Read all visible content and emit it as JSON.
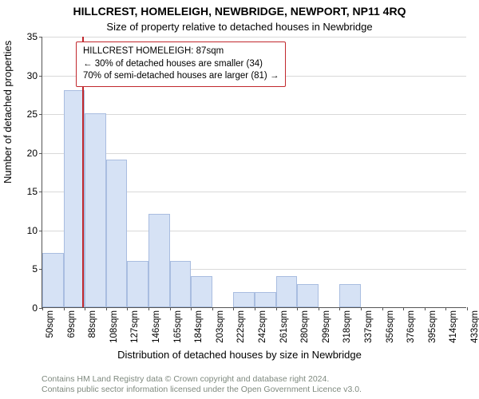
{
  "chart": {
    "type": "histogram",
    "title_main": "HILLCREST, HOMELEIGH, NEWBRIDGE, NEWPORT, NP11 4RQ",
    "title_sub": "Size of property relative to detached houses in Newbridge",
    "ylabel": "Number of detached properties",
    "xlabel": "Distribution of detached houses by size in Newbridge",
    "ylim": [
      0,
      35
    ],
    "ytick_step": 5,
    "yticks": [
      0,
      5,
      10,
      15,
      20,
      25,
      30,
      35
    ],
    "x_start": 50,
    "x_bin_width": 19.2,
    "x_tick_labels": [
      "50sqm",
      "69sqm",
      "88sqm",
      "108sqm",
      "127sqm",
      "146sqm",
      "165sqm",
      "184sqm",
      "203sqm",
      "222sqm",
      "242sqm",
      "261sqm",
      "280sqm",
      "299sqm",
      "318sqm",
      "337sqm",
      "356sqm",
      "376sqm",
      "395sqm",
      "414sqm",
      "433sqm"
    ],
    "bar_values": [
      7,
      28,
      25,
      19,
      6,
      12,
      6,
      4,
      0,
      2,
      2,
      4,
      3,
      0,
      3,
      0,
      0,
      0,
      0,
      0
    ],
    "bar_fill": "#d6e2f5",
    "bar_stroke": "#a9bde0",
    "grid_color": "#d9d9d9",
    "axis_color": "#555555",
    "background_color": "#ffffff",
    "title_fontsize": 14,
    "subtitle_fontsize": 13,
    "label_fontsize": 13,
    "tick_fontsize": 12,
    "marker": {
      "value_sqm": 87,
      "color": "#c1282d",
      "line_width": 2.5
    },
    "infobox": {
      "border_color": "#c1282d",
      "bg_color": "#ffffff",
      "line1": "HILLCREST HOMELEIGH: 87sqm",
      "line2": "← 30% of detached houses are smaller (34)",
      "line3": "70% of semi-detached houses are larger (81) →"
    },
    "footer_line1": "Contains HM Land Registry data © Crown copyright and database right 2024.",
    "footer_line2": "Contains public sector information licensed under the Open Government Licence v3.0."
  }
}
